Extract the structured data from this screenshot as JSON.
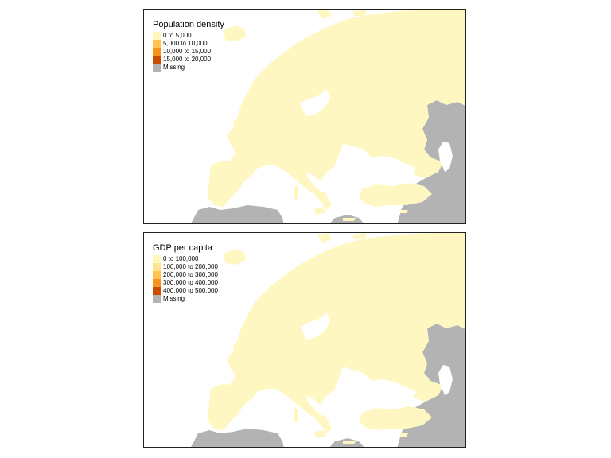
{
  "colors": {
    "land": "#fff7c2",
    "missing": "#b3b3b3",
    "border": "#222222"
  },
  "maps": [
    {
      "title": "Population density",
      "legend": [
        {
          "label": "0 to 5,000",
          "color": "#fff7bc"
        },
        {
          "label": "5,000 to 10,000",
          "color": "#fec44f"
        },
        {
          "label": "10,000 to 15,000",
          "color": "#f7941d"
        },
        {
          "label": "15,000 to 20,000",
          "color": "#cc4c02"
        },
        {
          "label": "Missing",
          "color": "#b3b3b3"
        }
      ]
    },
    {
      "title": "GDP per capita",
      "legend": [
        {
          "label": "0 to 100,000",
          "color": "#fff7bc"
        },
        {
          "label": "100,000 to 200,000",
          "color": "#fee391"
        },
        {
          "label": "200,000 to 300,000",
          "color": "#fec44f"
        },
        {
          "label": "300,000 to 400,000",
          "color": "#f7941d"
        },
        {
          "label": "400,000 to 500,000",
          "color": "#cc4c02"
        },
        {
          "label": "Missing",
          "color": "#b3b3b3"
        }
      ]
    }
  ]
}
